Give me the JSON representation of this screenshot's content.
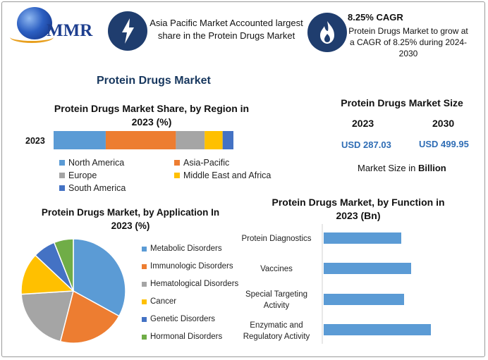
{
  "brand": {
    "logo_text": "MMR"
  },
  "header": {
    "box1_text": "Asia Pacific Market Accounted largest share in the Protein Drugs Market",
    "box2_title": "8.25% CAGR",
    "box2_text": "Protein Drugs Market to grow at a CAGR of 8.25% during 2024-2030",
    "box1_icon": "lightning-bolt-icon",
    "box2_icon": "flame-icon"
  },
  "main_title": "Protein Drugs Market",
  "market_size": {
    "title": "Protein Drugs Market Size",
    "years": [
      "2023",
      "2030"
    ],
    "values": [
      "USD 287.03",
      "USD 499.95"
    ],
    "unit_prefix": "Market Size in ",
    "unit_bold": "Billion"
  },
  "chart_data": [
    {
      "type": "bar",
      "orientation": "horizontal-stacked",
      "title": "Protein Drugs Market Share, by Region in 2023 (%)",
      "categories": [
        "2023"
      ],
      "series": [
        {
          "name": "North America",
          "values": [
            29
          ],
          "color": "#5b9bd5"
        },
        {
          "name": "Asia-Pacific",
          "values": [
            39
          ],
          "color": "#ed7d31"
        },
        {
          "name": "Europe",
          "values": [
            16
          ],
          "color": "#a5a5a5"
        },
        {
          "name": "Middle East and Africa",
          "values": [
            10
          ],
          "color": "#ffc000"
        },
        {
          "name": "South America",
          "values": [
            6
          ],
          "color": "#4472c4"
        }
      ],
      "legend_placement": "bottom",
      "grid": false
    },
    {
      "type": "pie",
      "title": "Protein Drugs Market, by Application In 2023 (%)",
      "labels": [
        "Metabolic Disorders",
        "Immunologic Disorders",
        "Hematological Disorders",
        "Cancer",
        "Genetic Disorders",
        "Hormonal Disorders"
      ],
      "values": [
        33,
        21,
        20,
        13,
        7,
        6
      ],
      "colors": [
        "#5b9bd5",
        "#ed7d31",
        "#a5a5a5",
        "#ffc000",
        "#4472c4",
        "#70ad47"
      ],
      "legend_placement": "right"
    },
    {
      "type": "bar",
      "orientation": "horizontal",
      "title": "Protein Drugs Market, by Function in 2023 (Bn)",
      "categories": [
        "Protein Diagnostics",
        "Vaccines",
        "Special Targeting Activity",
        "Enzymatic and Regulatory Activity"
      ],
      "values": [
        55,
        62,
        57,
        76
      ],
      "xlim": [
        0,
        100
      ],
      "color": "#5b9bd5",
      "grid": false
    }
  ]
}
